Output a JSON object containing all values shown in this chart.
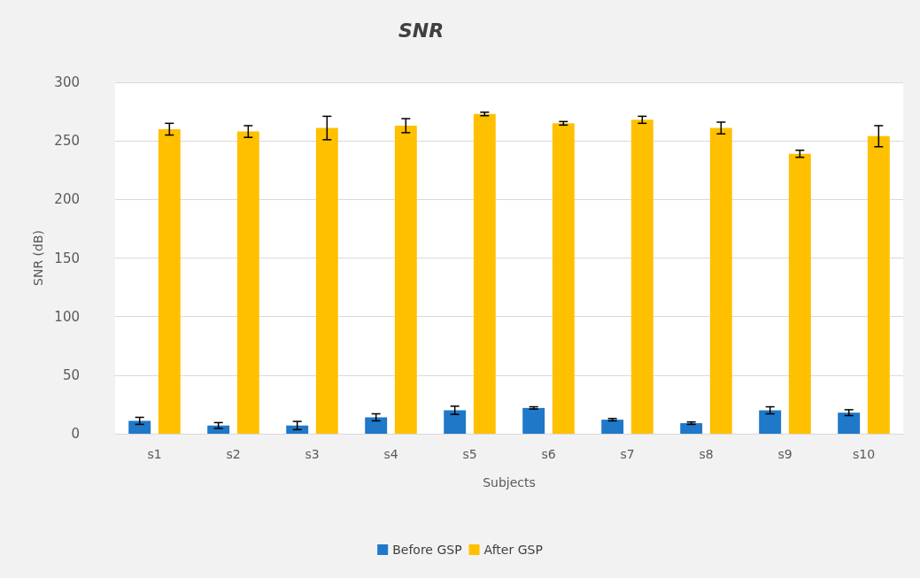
{
  "chart_data": {
    "type": "bar",
    "title": "SNR",
    "xlabel": "Subjects",
    "ylabel": "SNR (dB)",
    "categories": [
      "s1",
      "s2",
      "s3",
      "s4",
      "s5",
      "s6",
      "s7",
      "s8",
      "s9",
      "s10"
    ],
    "series": [
      {
        "name": "Before GSP",
        "color": "#1f78c8",
        "values": [
          11,
          7,
          7,
          14,
          20,
          22,
          12,
          9,
          20,
          18
        ],
        "errors": [
          3,
          2.5,
          3.5,
          3,
          3.5,
          1,
          1,
          1,
          3,
          2.5
        ]
      },
      {
        "name": "After GSP",
        "color": "#ffc000",
        "values": [
          260,
          258,
          261,
          263,
          273,
          265,
          268,
          261,
          239,
          254
        ],
        "errors": [
          5,
          5,
          10,
          6,
          1.5,
          1.5,
          3,
          5,
          3,
          9
        ]
      }
    ],
    "ylim": [
      0,
      300
    ],
    "yticks": [
      0,
      50,
      100,
      150,
      200,
      250,
      300
    ],
    "grid": "y",
    "legend": "bottom"
  }
}
